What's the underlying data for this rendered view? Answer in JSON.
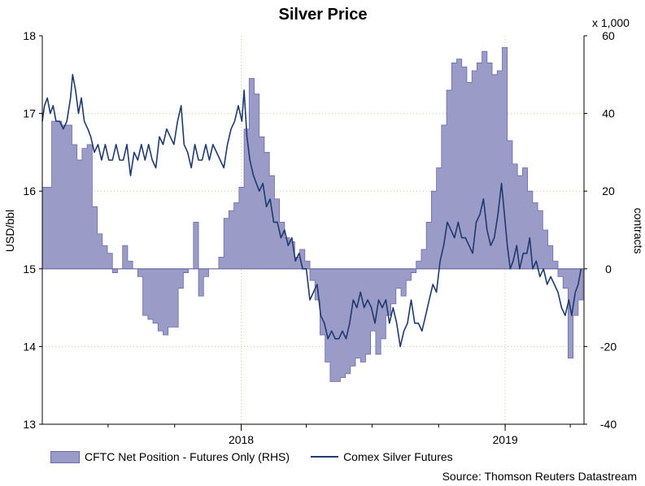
{
  "chart_data": {
    "type": "line",
    "title": "Silver Price",
    "left_axis": {
      "label": "USD/bbl",
      "min": 13,
      "max": 18,
      "ticks": [
        "13",
        "14",
        "15",
        "16",
        "17",
        "18"
      ]
    },
    "right_axis": {
      "label": "contracts",
      "multiplier_label": "x 1,000",
      "min": -40,
      "max": 60,
      "ticks": [
        "-40",
        "-20",
        "0",
        "20",
        "40",
        "60"
      ]
    },
    "x_axis": {
      "start": "2017-04",
      "end": "2019-04",
      "labels": [
        {
          "text": "2018",
          "date": "2018-01"
        },
        {
          "text": "2019",
          "date": "2019-01"
        }
      ]
    },
    "grid": "dotted horizontal",
    "legend_position": "bottom",
    "source": "Source: Thomson Reuters Datastream",
    "series": [
      {
        "name": "CFTC Net Position - Futures Only (RHS)",
        "type": "area",
        "axis": "right",
        "color": "#9b9bc8",
        "points": [
          [
            "2017-04-01",
            21
          ],
          [
            "2017-04-07",
            21
          ],
          [
            "2017-04-14",
            38
          ],
          [
            "2017-04-28",
            37
          ],
          [
            "2017-05-12",
            32
          ],
          [
            "2017-05-19",
            28
          ],
          [
            "2017-05-26",
            31
          ],
          [
            "2017-06-02",
            32
          ],
          [
            "2017-06-09",
            16
          ],
          [
            "2017-06-16",
            9
          ],
          [
            "2017-06-23",
            6
          ],
          [
            "2017-06-30",
            4
          ],
          [
            "2017-07-07",
            -1
          ],
          [
            "2017-07-14",
            0
          ],
          [
            "2017-07-21",
            6
          ],
          [
            "2017-07-28",
            2
          ],
          [
            "2017-08-04",
            0
          ],
          [
            "2017-08-11",
            -2
          ],
          [
            "2017-08-18",
            -12
          ],
          [
            "2017-08-25",
            -13
          ],
          [
            "2017-09-01",
            -14
          ],
          [
            "2017-09-08",
            -16
          ],
          [
            "2017-09-15",
            -17
          ],
          [
            "2017-09-22",
            -15
          ],
          [
            "2017-09-29",
            -15
          ],
          [
            "2017-10-06",
            -5
          ],
          [
            "2017-10-13",
            -1
          ],
          [
            "2017-10-20",
            0
          ],
          [
            "2017-10-27",
            12
          ],
          [
            "2017-11-03",
            -7
          ],
          [
            "2017-11-10",
            -2
          ],
          [
            "2017-11-17",
            0
          ],
          [
            "2017-12-01",
            3
          ],
          [
            "2017-12-08",
            13
          ],
          [
            "2017-12-15",
            15
          ],
          [
            "2017-12-22",
            17
          ],
          [
            "2017-12-29",
            21
          ],
          [
            "2018-01-05",
            36
          ],
          [
            "2018-01-12",
            49
          ],
          [
            "2018-01-19",
            45
          ],
          [
            "2018-01-26",
            34
          ],
          [
            "2018-02-02",
            30
          ],
          [
            "2018-02-09",
            24
          ],
          [
            "2018-02-16",
            18
          ],
          [
            "2018-02-23",
            12
          ],
          [
            "2018-03-02",
            8
          ],
          [
            "2018-03-09",
            7
          ],
          [
            "2018-03-16",
            3
          ],
          [
            "2018-03-23",
            5
          ],
          [
            "2018-03-30",
            2
          ],
          [
            "2018-04-06",
            -3
          ],
          [
            "2018-04-13",
            -8
          ],
          [
            "2018-04-20",
            -17
          ],
          [
            "2018-04-27",
            -24
          ],
          [
            "2018-05-04",
            -29
          ],
          [
            "2018-05-11",
            -29
          ],
          [
            "2018-05-18",
            -28
          ],
          [
            "2018-05-25",
            -27
          ],
          [
            "2018-06-01",
            -25
          ],
          [
            "2018-06-08",
            -23
          ],
          [
            "2018-06-15",
            -24
          ],
          [
            "2018-06-22",
            -22
          ],
          [
            "2018-06-29",
            -16
          ],
          [
            "2018-07-06",
            -22
          ],
          [
            "2018-07-13",
            -18
          ],
          [
            "2018-07-20",
            -12
          ],
          [
            "2018-07-27",
            -9
          ],
          [
            "2018-08-03",
            -5
          ],
          [
            "2018-08-10",
            -7
          ],
          [
            "2018-08-17",
            -3
          ],
          [
            "2018-08-24",
            -1
          ],
          [
            "2018-08-31",
            2
          ],
          [
            "2018-09-07",
            5
          ],
          [
            "2018-09-14",
            12
          ],
          [
            "2018-09-21",
            20
          ],
          [
            "2018-09-28",
            26
          ],
          [
            "2018-10-05",
            37
          ],
          [
            "2018-10-12",
            46
          ],
          [
            "2018-10-19",
            53
          ],
          [
            "2018-10-26",
            54
          ],
          [
            "2018-11-02",
            52
          ],
          [
            "2018-11-09",
            48
          ],
          [
            "2018-11-16",
            51
          ],
          [
            "2018-11-23",
            53
          ],
          [
            "2018-11-30",
            56
          ],
          [
            "2018-12-07",
            53
          ],
          [
            "2018-12-14",
            50
          ],
          [
            "2018-12-21",
            51
          ],
          [
            "2018-12-28",
            57
          ],
          [
            "2019-01-04",
            33
          ],
          [
            "2019-01-11",
            27
          ],
          [
            "2019-01-18",
            24
          ],
          [
            "2019-01-25",
            26
          ],
          [
            "2019-02-01",
            20
          ],
          [
            "2019-02-08",
            17
          ],
          [
            "2019-02-15",
            15
          ],
          [
            "2019-02-22",
            10
          ],
          [
            "2019-03-01",
            6
          ],
          [
            "2019-03-08",
            2
          ],
          [
            "2019-03-15",
            -2
          ],
          [
            "2019-03-22",
            -5
          ],
          [
            "2019-03-29",
            -23
          ],
          [
            "2019-04-05",
            -12
          ],
          [
            "2019-04-12",
            -8
          ]
        ]
      },
      {
        "name": "Comex Silver Futures",
        "type": "line",
        "axis": "left",
        "color": "#1f3a6e",
        "points": [
          [
            "2017-04-01",
            16.9
          ],
          [
            "2017-04-04",
            17.1
          ],
          [
            "2017-04-08",
            17.2
          ],
          [
            "2017-04-12",
            17.0
          ],
          [
            "2017-04-16",
            17.1
          ],
          [
            "2017-04-20",
            16.9
          ],
          [
            "2017-04-25",
            16.9
          ],
          [
            "2017-04-30",
            16.8
          ],
          [
            "2017-05-05",
            16.9
          ],
          [
            "2017-05-10",
            17.2
          ],
          [
            "2017-05-13",
            17.5
          ],
          [
            "2017-05-17",
            17.3
          ],
          [
            "2017-05-21",
            17.0
          ],
          [
            "2017-05-25",
            17.2
          ],
          [
            "2017-05-29",
            16.9
          ],
          [
            "2017-06-03",
            16.8
          ],
          [
            "2017-06-07",
            16.7
          ],
          [
            "2017-06-12",
            16.5
          ],
          [
            "2017-06-17",
            16.6
          ],
          [
            "2017-06-22",
            16.4
          ],
          [
            "2017-06-27",
            16.6
          ],
          [
            "2017-07-02",
            16.4
          ],
          [
            "2017-07-07",
            16.4
          ],
          [
            "2017-07-12",
            16.6
          ],
          [
            "2017-07-17",
            16.4
          ],
          [
            "2017-07-22",
            16.4
          ],
          [
            "2017-07-27",
            16.6
          ],
          [
            "2017-08-01",
            16.2
          ],
          [
            "2017-08-06",
            16.5
          ],
          [
            "2017-08-11",
            16.4
          ],
          [
            "2017-08-16",
            16.6
          ],
          [
            "2017-08-21",
            16.4
          ],
          [
            "2017-08-26",
            16.6
          ],
          [
            "2017-08-31",
            16.4
          ],
          [
            "2017-09-05",
            16.3
          ],
          [
            "2017-09-10",
            16.7
          ],
          [
            "2017-09-15",
            16.6
          ],
          [
            "2017-09-20",
            16.8
          ],
          [
            "2017-09-25",
            16.7
          ],
          [
            "2017-09-30",
            16.6
          ],
          [
            "2017-10-05",
            16.9
          ],
          [
            "2017-10-10",
            17.1
          ],
          [
            "2017-10-14",
            16.6
          ],
          [
            "2017-10-19",
            16.5
          ],
          [
            "2017-10-24",
            16.3
          ],
          [
            "2017-10-29",
            16.6
          ],
          [
            "2017-11-03",
            16.4
          ],
          [
            "2017-11-08",
            16.4
          ],
          [
            "2017-11-13",
            16.6
          ],
          [
            "2017-11-18",
            16.4
          ],
          [
            "2017-11-23",
            16.6
          ],
          [
            "2017-11-28",
            16.5
          ],
          [
            "2017-12-03",
            16.4
          ],
          [
            "2017-12-08",
            16.3
          ],
          [
            "2017-12-13",
            16.6
          ],
          [
            "2017-12-18",
            16.8
          ],
          [
            "2017-12-23",
            16.9
          ],
          [
            "2017-12-28",
            17.1
          ],
          [
            "2018-01-02",
            16.9
          ],
          [
            "2018-01-05",
            17.3
          ],
          [
            "2018-01-09",
            16.7
          ],
          [
            "2018-01-13",
            16.4
          ],
          [
            "2018-01-18",
            16.2
          ],
          [
            "2018-01-22",
            16.1
          ],
          [
            "2018-01-26",
            16.0
          ],
          [
            "2018-01-31",
            16.1
          ],
          [
            "2018-02-05",
            15.8
          ],
          [
            "2018-02-10",
            15.9
          ],
          [
            "2018-02-15",
            15.6
          ],
          [
            "2018-02-20",
            15.6
          ],
          [
            "2018-02-25",
            15.4
          ],
          [
            "2018-03-02",
            15.5
          ],
          [
            "2018-03-07",
            15.3
          ],
          [
            "2018-03-12",
            15.4
          ],
          [
            "2018-03-17",
            15.1
          ],
          [
            "2018-03-22",
            15.2
          ],
          [
            "2018-03-27",
            15.0
          ],
          [
            "2018-04-01",
            15.0
          ],
          [
            "2018-04-06",
            14.6
          ],
          [
            "2018-04-11",
            14.7
          ],
          [
            "2018-04-16",
            14.8
          ],
          [
            "2018-04-21",
            14.4
          ],
          [
            "2018-04-26",
            14.3
          ],
          [
            "2018-05-01",
            14.1
          ],
          [
            "2018-05-06",
            14.2
          ],
          [
            "2018-05-11",
            14.1
          ],
          [
            "2018-05-16",
            14.1
          ],
          [
            "2018-05-21",
            14.2
          ],
          [
            "2018-05-26",
            14.1
          ],
          [
            "2018-05-31",
            14.3
          ],
          [
            "2018-06-05",
            14.6
          ],
          [
            "2018-06-10",
            14.5
          ],
          [
            "2018-06-15",
            14.7
          ],
          [
            "2018-06-20",
            14.5
          ],
          [
            "2018-06-25",
            14.6
          ],
          [
            "2018-06-30",
            14.5
          ],
          [
            "2018-07-05",
            14.3
          ],
          [
            "2018-07-10",
            14.6
          ],
          [
            "2018-07-15",
            14.5
          ],
          [
            "2018-07-20",
            14.6
          ],
          [
            "2018-07-25",
            14.3
          ],
          [
            "2018-07-30",
            14.5
          ],
          [
            "2018-08-04",
            14.3
          ],
          [
            "2018-08-09",
            14.0
          ],
          [
            "2018-08-14",
            14.2
          ],
          [
            "2018-08-19",
            14.3
          ],
          [
            "2018-08-24",
            14.6
          ],
          [
            "2018-08-29",
            14.3
          ],
          [
            "2018-09-03",
            14.3
          ],
          [
            "2018-09-08",
            14.2
          ],
          [
            "2018-09-13",
            14.4
          ],
          [
            "2018-09-18",
            14.6
          ],
          [
            "2018-09-23",
            14.8
          ],
          [
            "2018-09-28",
            14.7
          ],
          [
            "2018-10-03",
            15.1
          ],
          [
            "2018-10-08",
            15.3
          ],
          [
            "2018-10-13",
            15.6
          ],
          [
            "2018-10-18",
            15.5
          ],
          [
            "2018-10-23",
            15.4
          ],
          [
            "2018-10-28",
            15.6
          ],
          [
            "2018-11-02",
            15.4
          ],
          [
            "2018-11-07",
            15.4
          ],
          [
            "2018-11-12",
            15.3
          ],
          [
            "2018-11-17",
            15.2
          ],
          [
            "2018-11-22",
            15.6
          ],
          [
            "2018-11-27",
            15.7
          ],
          [
            "2018-12-02",
            15.9
          ],
          [
            "2018-12-07",
            15.5
          ],
          [
            "2018-12-12",
            15.3
          ],
          [
            "2018-12-17",
            15.4
          ],
          [
            "2018-12-22",
            15.7
          ],
          [
            "2018-12-27",
            16.1
          ],
          [
            "2019-01-01",
            15.6
          ],
          [
            "2019-01-04",
            15.3
          ],
          [
            "2019-01-08",
            15.0
          ],
          [
            "2019-01-12",
            15.1
          ],
          [
            "2019-01-17",
            15.3
          ],
          [
            "2019-01-21",
            15.0
          ],
          [
            "2019-01-26",
            15.2
          ],
          [
            "2019-01-31",
            15.2
          ],
          [
            "2019-02-04",
            15.4
          ],
          [
            "2019-02-08",
            15.0
          ],
          [
            "2019-02-13",
            15.1
          ],
          [
            "2019-02-18",
            14.9
          ],
          [
            "2019-02-23",
            15.0
          ],
          [
            "2019-02-28",
            14.8
          ],
          [
            "2019-03-05",
            14.9
          ],
          [
            "2019-03-10",
            14.8
          ],
          [
            "2019-03-15",
            14.7
          ],
          [
            "2019-03-20",
            14.5
          ],
          [
            "2019-03-25",
            14.4
          ],
          [
            "2019-03-30",
            14.6
          ],
          [
            "2019-04-03",
            14.4
          ],
          [
            "2019-04-08",
            14.7
          ],
          [
            "2019-04-12",
            14.8
          ],
          [
            "2019-04-16",
            15.0
          ]
        ]
      }
    ]
  }
}
